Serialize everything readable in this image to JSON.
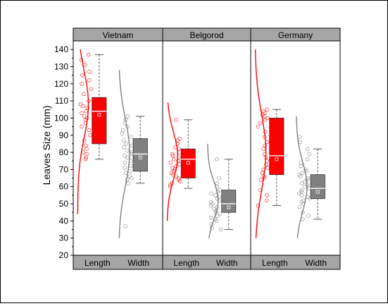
{
  "chart_data": {
    "type": "box",
    "ylabel": "Leaves Size (mm)",
    "ylim": [
      20,
      145
    ],
    "yticks": [
      20,
      30,
      40,
      50,
      60,
      70,
      80,
      90,
      100,
      110,
      120,
      130,
      140
    ],
    "grid": false,
    "categories": [
      "Length",
      "Width"
    ],
    "colors": {
      "Length": "#ff0000",
      "Width": "#808080",
      "panel_header": "#a6a6a6",
      "axis": "#000000"
    },
    "panels": [
      {
        "name": "Vietnam",
        "series": [
          {
            "category": "Length",
            "box": {
              "q1": 85,
              "median": 104,
              "q3": 112,
              "whisker_low": 76,
              "whisker_high": 137
            },
            "points": [
              137,
              134,
              131,
              127,
              125,
              122,
              120,
              117,
              114,
              110,
              108,
              107,
              106,
              104,
              103,
              101,
              100,
              99,
              97,
              95,
              93,
              90,
              87,
              84,
              82,
              80,
              79,
              77,
              76
            ],
            "distribution": {
              "min": 44,
              "max": 140,
              "peak": 108
            }
          },
          {
            "category": "Width",
            "box": {
              "q1": 69,
              "median": 79,
              "q3": 88,
              "whisker_low": 62,
              "whisker_high": 101
            },
            "points": [
              101,
              99,
              97,
              95,
              93,
              91,
              89,
              87,
              85,
              84,
              83,
              81,
              80,
              79,
              78,
              77,
              75,
              74,
              72,
              71,
              69,
              68,
              66,
              65,
              64,
              62,
              37
            ],
            "distribution": {
              "min": 30,
              "max": 128,
              "peak": 80
            }
          }
        ]
      },
      {
        "name": "Belgorod",
        "series": [
          {
            "category": "Length",
            "box": {
              "q1": 65,
              "median": 76,
              "q3": 82,
              "whisker_low": 59,
              "whisker_high": 99
            },
            "points": [
              99,
              88,
              87,
              85,
              83,
              82,
              80,
              79,
              78,
              77,
              76,
              75,
              74,
              73,
              72,
              71,
              70,
              69,
              68,
              67,
              66,
              65,
              64,
              63,
              62,
              61,
              60
            ],
            "distribution": {
              "min": 40,
              "max": 109,
              "peak": 78
            }
          },
          {
            "category": "Width",
            "box": {
              "q1": 45,
              "median": 50,
              "q3": 58,
              "whisker_low": 35,
              "whisker_high": 76
            },
            "points": [
              76,
              65,
              62,
              60,
              58,
              57,
              56,
              55,
              54,
              53,
              52,
              51,
              50,
              49,
              48,
              47,
              46,
              45,
              44,
              43,
              42,
              41,
              40,
              38,
              36,
              35
            ],
            "distribution": {
              "min": 30,
              "max": 85,
              "peak": 52
            }
          }
        ]
      },
      {
        "name": "Germany",
        "series": [
          {
            "category": "Length",
            "box": {
              "q1": 67,
              "median": 78,
              "q3": 100,
              "whisker_low": 49,
              "whisker_high": 105
            },
            "points": [
              105,
              104,
              103,
              102,
              101,
              100,
              99,
              97,
              95,
              92,
              89,
              86,
              84,
              82,
              79,
              77,
              75,
              73,
              71,
              70,
              68,
              66,
              65,
              64,
              58,
              55,
              52,
              49
            ],
            "distribution": {
              "min": 30,
              "max": 140,
              "peak": 80
            }
          },
          {
            "category": "Width",
            "box": {
              "q1": 53,
              "median": 59,
              "q3": 67,
              "whisker_low": 41,
              "whisker_high": 82
            },
            "points": [
              89,
              86,
              82,
              79,
              76,
              74,
              72,
              70,
              69,
              68,
              67,
              66,
              65,
              64,
              63,
              62,
              61,
              60,
              59,
              58,
              57,
              56,
              55,
              54,
              53,
              52,
              51,
              50,
              48,
              45,
              43,
              41
            ],
            "distribution": {
              "min": 30,
              "max": 101,
              "peak": 60
            }
          }
        ]
      }
    ]
  }
}
